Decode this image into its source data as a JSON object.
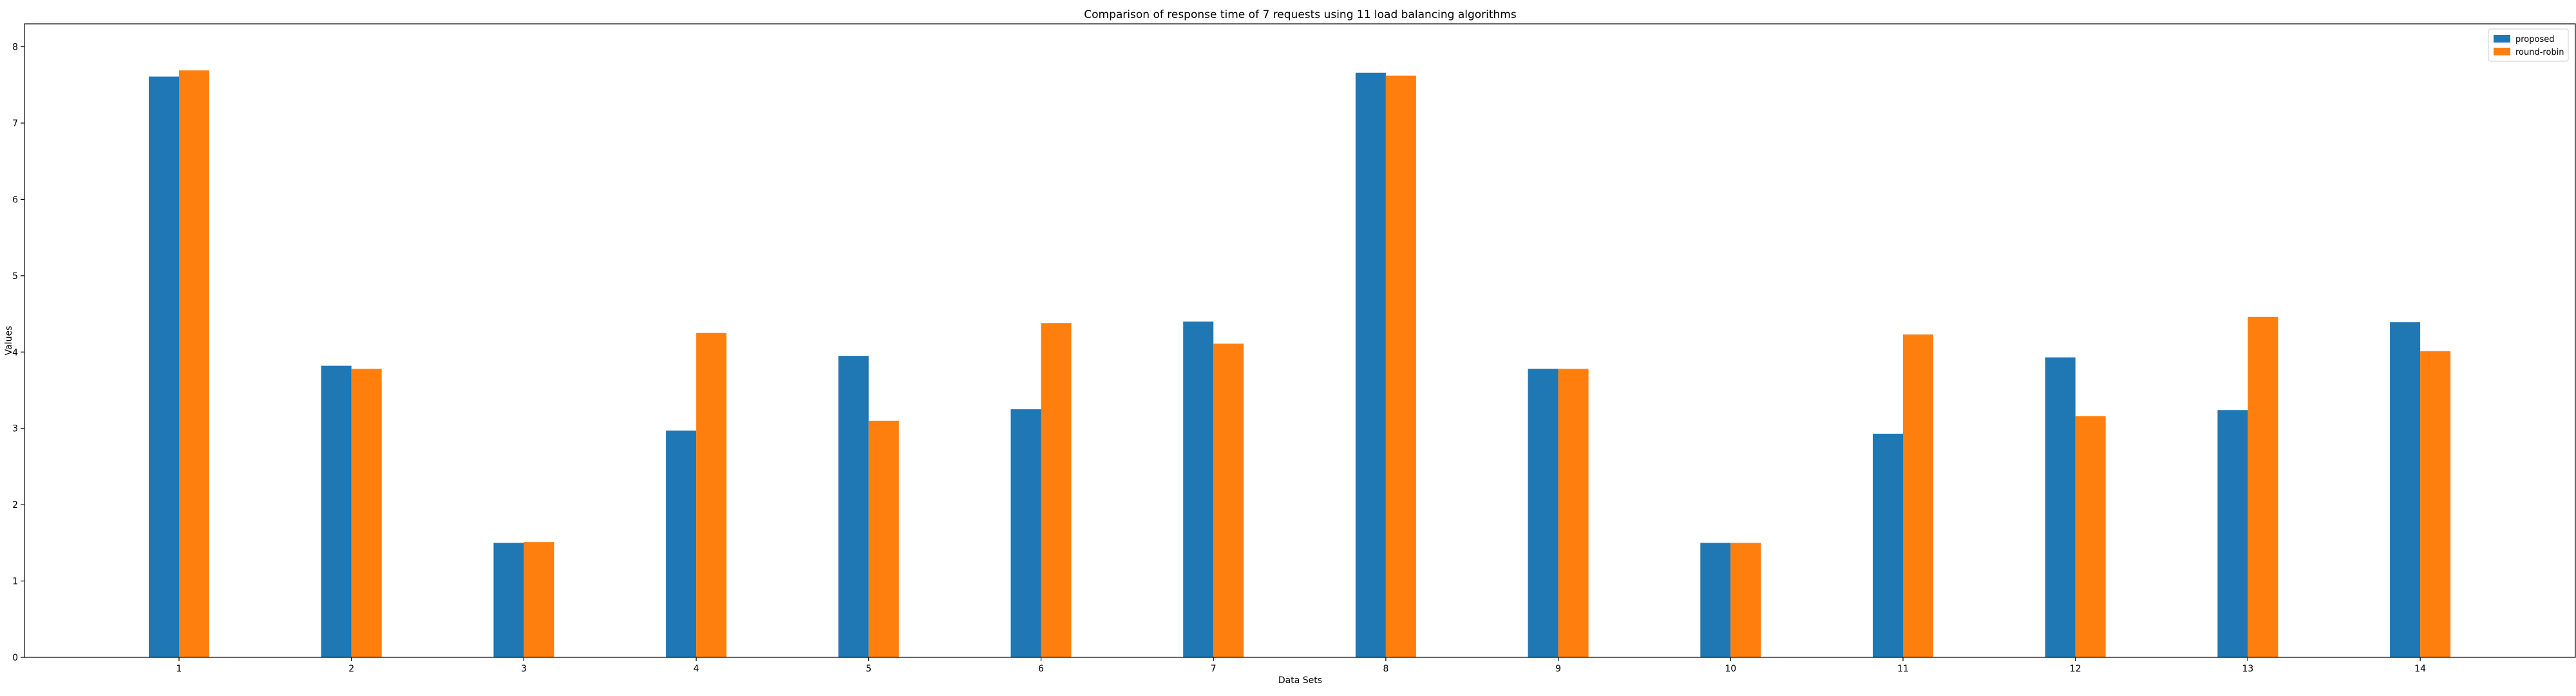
{
  "chart_data": {
    "type": "bar",
    "title": "Comparison of response time of 7 requests using 11 load balancing algorithms",
    "xlabel": "Data Sets",
    "ylabel": "Values",
    "categories": [
      "1",
      "2",
      "3",
      "4",
      "5",
      "6",
      "7",
      "8",
      "9",
      "10",
      "11",
      "12",
      "13",
      "14"
    ],
    "series": [
      {
        "name": "proposed",
        "color": "#1f77b4",
        "values": [
          7.61,
          3.82,
          1.5,
          2.97,
          3.95,
          3.25,
          4.4,
          7.66,
          3.78,
          1.5,
          2.93,
          3.93,
          3.24,
          4.39
        ]
      },
      {
        "name": "round-robin",
        "color": "#ff7f0e",
        "values": [
          7.69,
          3.78,
          1.51,
          4.25,
          3.1,
          4.38,
          4.11,
          7.62,
          3.78,
          1.5,
          4.23,
          3.16,
          4.46,
          4.01
        ]
      }
    ],
    "ylim": [
      0,
      8.3
    ],
    "yticks": [
      "0",
      "1",
      "2",
      "3",
      "4",
      "5",
      "6",
      "7",
      "8"
    ],
    "grid": false,
    "legend_position": "top-right"
  }
}
